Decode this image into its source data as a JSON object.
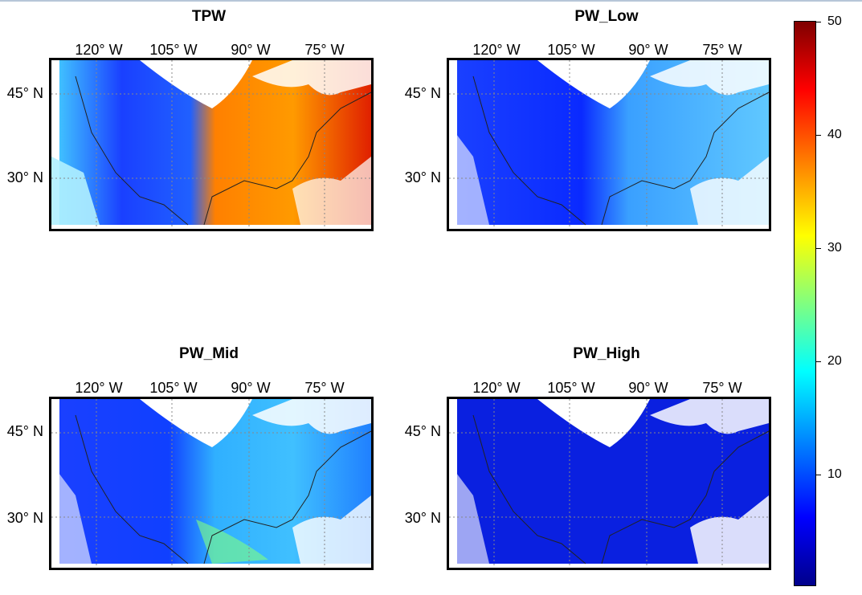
{
  "panels": [
    {
      "title": "TPW",
      "lon_labels": [
        "120° W",
        "105° W",
        "90° W",
        "75° W"
      ],
      "lat_labels": [
        "45° N",
        "30° N"
      ]
    },
    {
      "title": "PW_Low",
      "lon_labels": [
        "120° W",
        "105° W",
        "90° W",
        "75° W"
      ],
      "lat_labels": [
        "45° N",
        "30° N"
      ]
    },
    {
      "title": "PW_Mid",
      "lon_labels": [
        "120° W",
        "105° W",
        "90° W",
        "75° W"
      ],
      "lat_labels": [
        "45° N",
        "30° N"
      ]
    },
    {
      "title": "PW_High",
      "lon_labels": [
        "120° W",
        "105° W",
        "90° W",
        "75° W"
      ],
      "lat_labels": [
        "45° N",
        "30° N"
      ]
    }
  ],
  "colorbar": {
    "ticks": [
      "50",
      "40",
      "30",
      "20",
      "10"
    ],
    "range": [
      0,
      50
    ],
    "colors": [
      "#00008b",
      "#0000ff",
      "#0080ff",
      "#00ffff",
      "#80ff80",
      "#ffff00",
      "#ff8000",
      "#ff0000",
      "#7f0000"
    ]
  }
}
